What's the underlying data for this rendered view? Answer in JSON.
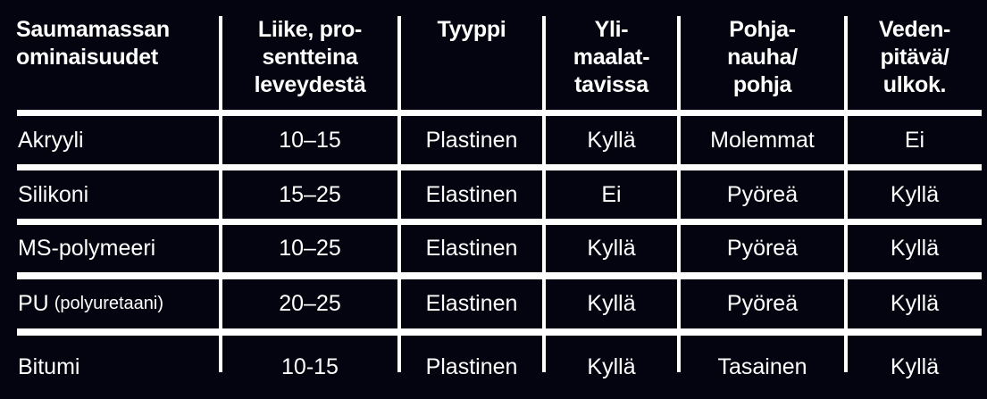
{
  "table": {
    "headers": [
      [
        "Saumamassan",
        "ominaisuudet"
      ],
      [
        "Liike, pro-",
        "sentteina",
        "leveydestä"
      ],
      [
        "Tyyppi"
      ],
      [
        "Yli-",
        "maalat-",
        "tavissa"
      ],
      [
        "Pohja-",
        "nauha/",
        "pohja"
      ],
      [
        "Veden-",
        "pitävä/",
        "ulkok."
      ]
    ],
    "rows": [
      {
        "name": "Akryyli",
        "name_note": "",
        "cells": [
          "10–15",
          "Plastinen",
          "Kyllä",
          "Molemmat",
          "Ei"
        ]
      },
      {
        "name": "Silikoni",
        "name_note": "",
        "cells": [
          "15–25",
          "Elastinen",
          "Ei",
          "Pyöreä",
          "Kyllä"
        ]
      },
      {
        "name": "MS-polymeeri",
        "name_note": "",
        "cells": [
          "10–25",
          "Elastinen",
          "Kyllä",
          "Pyöreä",
          "Kyllä"
        ]
      },
      {
        "name": "PU",
        "name_note": "(polyuretaani)",
        "cells": [
          "20–25",
          "Elastinen",
          "Kyllä",
          "Pyöreä",
          "Kyllä"
        ]
      },
      {
        "name": "Bitumi",
        "name_note": "",
        "cells": [
          "10-15",
          "Plastinen",
          "Kyllä",
          "Tasainen",
          "Kyllä"
        ]
      }
    ]
  },
  "colors": {
    "background": "#03040f",
    "text": "#ffffff",
    "rules": "#ffffff"
  }
}
